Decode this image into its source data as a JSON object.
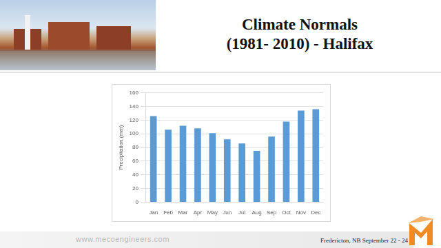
{
  "slide": {
    "title_lines": [
      "Climate Normals",
      "(1981- 2010) - Halifax"
    ],
    "website": "www.mecoengineers.com",
    "footer": "Fredericton, NB September 22 - 24"
  },
  "chart_data": {
    "type": "bar",
    "y_label": "Precipitation (mm)",
    "categories": [
      "Jan",
      "Feb",
      "Mar",
      "Apr",
      "May",
      "Jun",
      "Jul",
      "Aug",
      "Sep",
      "Oct",
      "Nov",
      "Dec"
    ],
    "values": [
      126,
      106,
      112,
      108,
      101,
      92,
      86,
      75,
      96,
      118,
      134,
      136
    ],
    "color": "#5b9bd5",
    "ylim": [
      0,
      160
    ],
    "yticks": [
      0,
      20,
      40,
      60,
      80,
      100,
      120,
      140,
      160
    ],
    "grid": true
  }
}
